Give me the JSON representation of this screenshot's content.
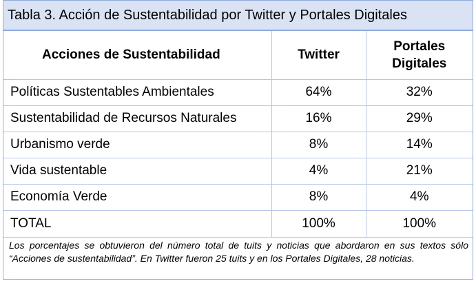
{
  "title": "Tabla 3. Acción de Sustentabilidad  por Twitter y Portales Digitales",
  "headers": {
    "col1": "Acciones de Sustentabilidad",
    "col2": "Twitter",
    "col3_line1": "Portales",
    "col3_line2": "Digitales"
  },
  "rows": [
    {
      "label": "Políticas Sustentables Ambientales",
      "twitter": "64%",
      "portales": "32%"
    },
    {
      "label": "Sustentabilidad de Recursos Naturales",
      "twitter": "16%",
      "portales": "29%"
    },
    {
      "label": "Urbanismo verde",
      "twitter": "8%",
      "portales": "14%"
    },
    {
      "label": "Vida sustentable",
      "twitter": "4%",
      "portales": "21%"
    },
    {
      "label": "Economía Verde",
      "twitter": "8%",
      "portales": "4%"
    }
  ],
  "total": {
    "label": "TOTAL",
    "twitter": "100%",
    "portales": "100%"
  },
  "note": "Los porcentajes se obtuvieron del número total de tuits y noticias que abordaron en sus textos sólo “Acciones de sustentabilidad”. En Twitter fueron 25 tuits y en los Portales Digitales, 28 noticias.",
  "colors": {
    "title_background": "#dae3f3",
    "border": "#8eaadb",
    "grid": "#b4c6e7"
  }
}
